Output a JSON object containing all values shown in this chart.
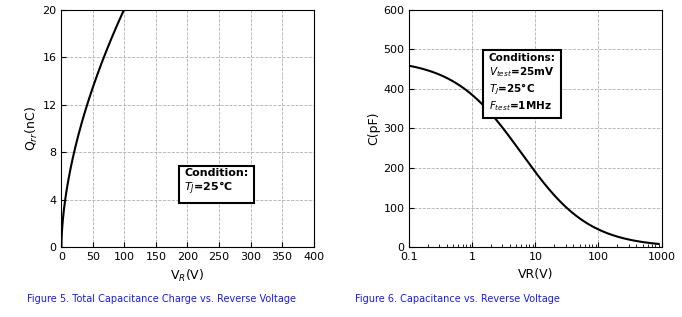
{
  "fig5": {
    "title": "Figure 5. Total Capacitance Charge vs. Reverse Voltage",
    "xlabel": "V$_R$(V)",
    "ylabel": "Q$_{rr}$(nC)",
    "xlim": [
      0,
      400
    ],
    "ylim": [
      0,
      20
    ],
    "xticks": [
      0,
      50,
      100,
      150,
      200,
      250,
      300,
      350,
      400
    ],
    "yticks": [
      0,
      4,
      8,
      12,
      16,
      20
    ],
    "ann_x": 195,
    "ann_y": 4.2,
    "curve_a": 1.42,
    "curve_exp": 0.575
  },
  "fig6": {
    "title": "Figure 6. Capacitance vs. Reverse Voltage",
    "xlabel": "VR(V)",
    "ylabel": "C(pF)",
    "xlim_log": [
      0.1,
      1000
    ],
    "ylim": [
      0,
      600
    ],
    "yticks": [
      0,
      100,
      200,
      300,
      400,
      500,
      600
    ],
    "ann_x": 1.8,
    "ann_y": 340,
    "C0": 475,
    "Vj": 1.8,
    "n": 0.62
  },
  "line_color": "#000000",
  "grid_color": "#b0b0b0",
  "grid_style": "--",
  "background": "#ffffff",
  "caption_color": "#1a1aff"
}
